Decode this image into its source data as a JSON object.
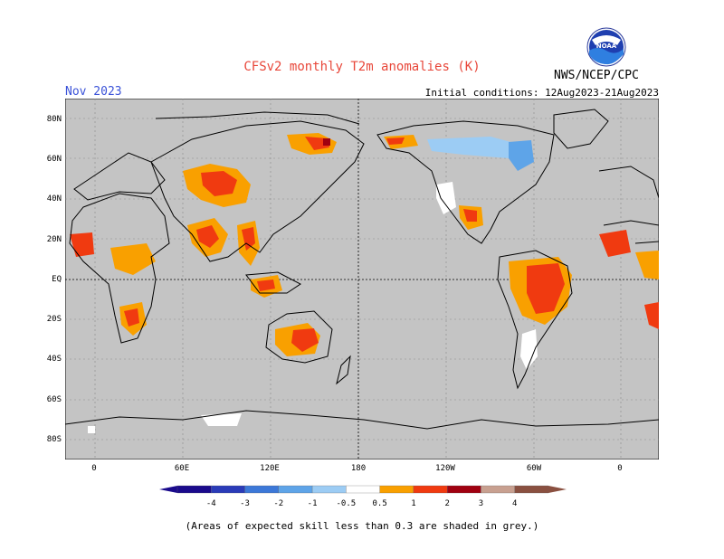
{
  "title": "CFSv2 monthly T2m anomalies (K)",
  "month": "Nov 2023",
  "initial_conditions": "Initial conditions: 12Aug2023-21Aug2023",
  "agency": "NWS/NCEP/CPC",
  "logo_text": "NOAA",
  "footnote": "(Areas of expected skill less than 0.3 are shaded in grey.)",
  "lat_ticks": [
    "80N",
    "60N",
    "40N",
    "20N",
    "EQ",
    "20S",
    "40S",
    "60S",
    "80S"
  ],
  "lon_ticks": [
    "0",
    "60E",
    "120E",
    "180",
    "120W",
    "60W",
    "0"
  ],
  "legend": {
    "labels": [
      "-4",
      "-3",
      "-2",
      "-1",
      "-0.5",
      "0.5",
      "1",
      "2",
      "3",
      "4"
    ],
    "colors": [
      "#1a0a8c",
      "#2a3bb8",
      "#3c78d8",
      "#5ea4e8",
      "#9cccf4",
      "#ffffff",
      "#f9a000",
      "#f03a10",
      "#a00010",
      "#c8a090",
      "#8a5040"
    ]
  },
  "colors": {
    "background_grey": "#c4c4c4",
    "coastline": "#000000",
    "title_red": "#e8473a",
    "month_blue": "#3a52d8"
  }
}
